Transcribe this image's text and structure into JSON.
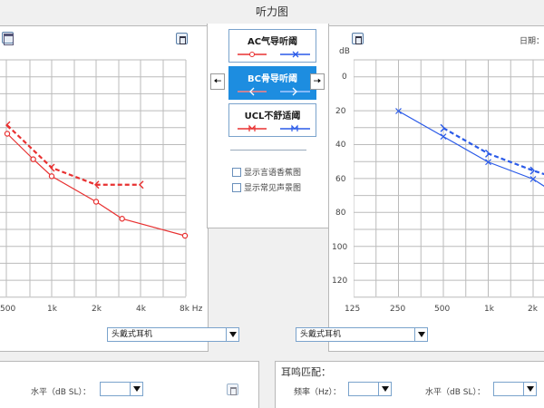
{
  "window_title": "听力图",
  "side_buttons": [
    {
      "label": "AC气导听阈",
      "active": false
    },
    {
      "label": "BC骨导听阈",
      "active": true
    },
    {
      "label": "UCL不舒适阈",
      "active": false
    }
  ],
  "checkboxes": [
    {
      "label": "显示言语香蕉图",
      "checked": false
    },
    {
      "label": "显示常见声景图",
      "checked": false
    }
  ],
  "left_chart": {
    "x_ticks": [
      "500",
      "1k",
      "2k",
      "4k",
      "8k Hz"
    ],
    "headphone_select": "头戴式耳机"
  },
  "right_chart": {
    "date_label": "日期：",
    "y_unit": "dB",
    "y_ticks": [
      "0",
      "20",
      "40",
      "60",
      "80",
      "100",
      "120"
    ],
    "x_ticks": [
      "125",
      "250",
      "500",
      "1k",
      "2k"
    ],
    "headphone_select": "头戴式耳机"
  },
  "bottom_left": {
    "level_label": "水平（dB SL）：",
    "level_value": ""
  },
  "bottom_right": {
    "section_title": "耳鸣匹配：",
    "freq_label": "频率（Hz）：",
    "freq_value": "",
    "level_label": "水平（dB SL）：",
    "level_value": ""
  },
  "chart_data": [
    {
      "type": "line",
      "ear": "right",
      "x": [
        500,
        750,
        1000,
        2000,
        3000,
        4000,
        8000
      ],
      "series": [
        {
          "name": "",
          "style": "solid",
          "marker": "circle",
          "color": "#e83030",
          "x": [
            500,
            750,
            1000,
            2000,
            3000,
            8000
          ],
          "values": [
            40,
            55,
            65,
            80,
            90,
            100
          ]
        },
        {
          "name": "",
          "style": "dashed",
          "marker": "bracket-left",
          "color": "#e83030",
          "x": [
            500,
            1000,
            2000,
            4000
          ],
          "values": [
            35,
            60,
            70,
            70
          ]
        }
      ],
      "y_reversed": true,
      "grid": true
    },
    {
      "type": "line",
      "ear": "left",
      "series": [
        {
          "name": "",
          "style": "solid",
          "marker": "x",
          "color": "#2a5ae8",
          "x": [
            250,
            500,
            1000,
            2000,
            3000
          ],
          "values": [
            20,
            35,
            50,
            60,
            70
          ]
        },
        {
          "name": "",
          "style": "dashed",
          "marker": "bracket-right",
          "color": "#2a5ae8",
          "x": [
            500,
            1000,
            2000,
            3000
          ],
          "values": [
            30,
            45,
            55,
            60
          ]
        }
      ],
      "y_reversed": true,
      "grid": true
    }
  ]
}
